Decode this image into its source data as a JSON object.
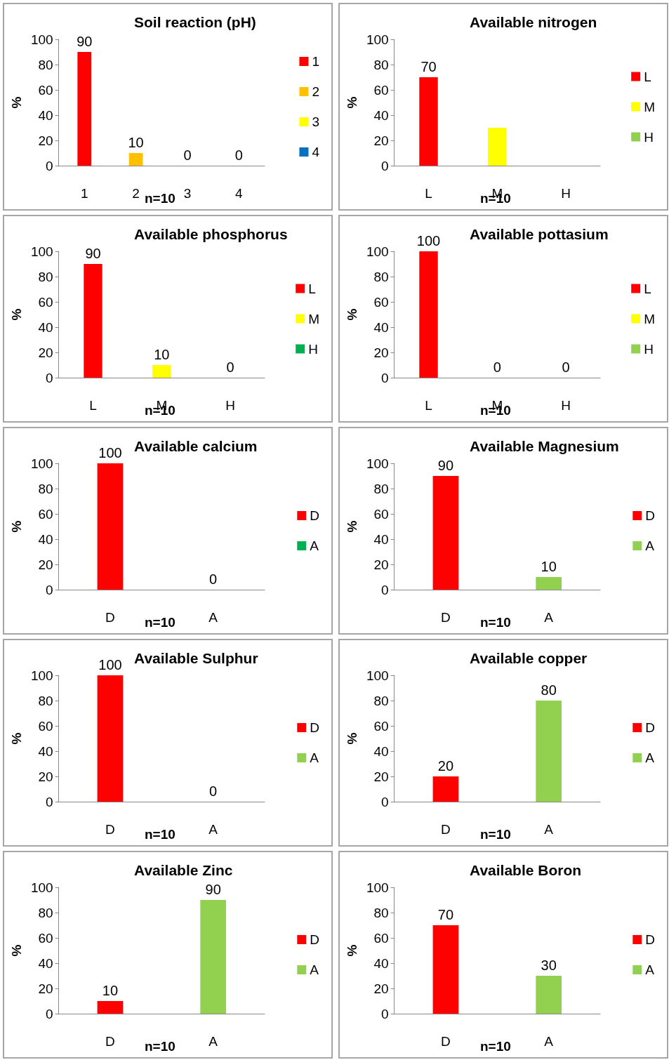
{
  "chart_data": [
    {
      "type": "bar",
      "title": "Soil reaction (pH)",
      "ylabel": "%",
      "categories": [
        "1",
        "2",
        "3",
        "4"
      ],
      "series": [
        {
          "name": "1",
          "color": "#ff0000",
          "values": [
            90,
            null,
            null,
            null
          ]
        },
        {
          "name": "2",
          "color": "#ffc000",
          "values": [
            null,
            10,
            null,
            null
          ]
        },
        {
          "name": "3",
          "color": "#ffff00",
          "values": [
            null,
            null,
            0,
            null
          ]
        },
        {
          "name": "4",
          "color": "#0070c0",
          "values": [
            null,
            null,
            null,
            0
          ]
        }
      ],
      "ylim": [
        0,
        100
      ],
      "yticks": [
        0,
        20,
        40,
        60,
        80,
        100
      ],
      "data_labels": true,
      "legend": "right",
      "annotations": [
        "n=10"
      ]
    },
    {
      "type": "bar",
      "title": "Available nitrogen",
      "ylabel": "%",
      "categories": [
        "L",
        "M",
        "H"
      ],
      "series": [
        {
          "name": "L",
          "color": "#ff0000",
          "values": [
            70,
            null,
            null
          ],
          "value_labels": [
            "70",
            null,
            null
          ]
        },
        {
          "name": "M",
          "color": "#ffff00",
          "values": [
            null,
            30,
            null
          ],
          "value_labels": [
            null,
            null,
            null
          ]
        },
        {
          "name": "H",
          "color": "#92d050",
          "values": [
            null,
            null,
            0
          ],
          "value_labels": [
            null,
            null,
            null
          ]
        }
      ],
      "ylim": [
        0,
        100
      ],
      "yticks": [
        0,
        20,
        40,
        60,
        80,
        100
      ],
      "legend": "right",
      "annotations": [
        "n=10"
      ]
    },
    {
      "type": "bar",
      "title": "Available phosphorus",
      "ylabel": "%",
      "categories": [
        "L",
        "M",
        "H"
      ],
      "series": [
        {
          "name": "L",
          "color": "#ff0000",
          "values": [
            90,
            null,
            null
          ]
        },
        {
          "name": "M",
          "color": "#ffff00",
          "values": [
            null,
            10,
            null
          ]
        },
        {
          "name": "H",
          "color": "#00b050",
          "values": [
            null,
            null,
            0
          ]
        }
      ],
      "ylim": [
        0,
        100
      ],
      "yticks": [
        0,
        20,
        40,
        60,
        80,
        100
      ],
      "data_labels": true,
      "legend": "right",
      "annotations": [
        "n=10"
      ]
    },
    {
      "type": "bar",
      "title": "Available pottasium",
      "ylabel": "%",
      "categories": [
        "L",
        "M",
        "H"
      ],
      "series": [
        {
          "name": "L",
          "color": "#ff0000",
          "values": [
            100,
            null,
            null
          ]
        },
        {
          "name": "M",
          "color": "#ffff00",
          "values": [
            null,
            0,
            null
          ]
        },
        {
          "name": "H",
          "color": "#92d050",
          "values": [
            null,
            null,
            0
          ]
        }
      ],
      "ylim": [
        0,
        100
      ],
      "yticks": [
        0,
        20,
        40,
        60,
        80,
        100
      ],
      "data_labels": true,
      "legend": "right",
      "annotations": [
        "n=10"
      ]
    },
    {
      "type": "bar",
      "title": "Available calcium",
      "ylabel": "%",
      "categories": [
        "D",
        "A"
      ],
      "series": [
        {
          "name": "D",
          "color": "#ff0000",
          "values": [
            100,
            null
          ]
        },
        {
          "name": "A",
          "color": "#00b050",
          "values": [
            null,
            0
          ]
        }
      ],
      "ylim": [
        0,
        100
      ],
      "yticks": [
        0,
        20,
        40,
        60,
        80,
        100
      ],
      "data_labels": true,
      "legend": "right",
      "annotations": [
        "n=10"
      ]
    },
    {
      "type": "bar",
      "title": "Available Magnesium",
      "ylabel": "%",
      "categories": [
        "D",
        "A"
      ],
      "series": [
        {
          "name": "D",
          "color": "#ff0000",
          "values": [
            90,
            null
          ]
        },
        {
          "name": "A",
          "color": "#92d050",
          "values": [
            null,
            10
          ]
        }
      ],
      "ylim": [
        0,
        100
      ],
      "yticks": [
        0,
        20,
        40,
        60,
        80,
        100
      ],
      "data_labels": true,
      "legend": "right",
      "annotations": [
        "n=10"
      ]
    },
    {
      "type": "bar",
      "title": "Available Sulphur",
      "ylabel": "%",
      "categories": [
        "D",
        "A"
      ],
      "series": [
        {
          "name": "D",
          "color": "#ff0000",
          "values": [
            100,
            null
          ]
        },
        {
          "name": "A",
          "color": "#92d050",
          "values": [
            null,
            0
          ]
        }
      ],
      "ylim": [
        0,
        100
      ],
      "yticks": [
        0,
        20,
        40,
        60,
        80,
        100
      ],
      "data_labels": true,
      "legend": "right",
      "annotations": [
        "n=10"
      ]
    },
    {
      "type": "bar",
      "title": "Available copper",
      "ylabel": "%",
      "categories": [
        "D",
        "A"
      ],
      "series": [
        {
          "name": "D",
          "color": "#ff0000",
          "values": [
            20,
            null
          ]
        },
        {
          "name": "A",
          "color": "#92d050",
          "values": [
            null,
            80
          ]
        }
      ],
      "ylim": [
        0,
        100
      ],
      "yticks": [
        0,
        20,
        40,
        60,
        80,
        100
      ],
      "data_labels": true,
      "legend": "right",
      "annotations": [
        "n=10"
      ]
    },
    {
      "type": "bar",
      "title": "Available Zinc",
      "ylabel": "%",
      "categories": [
        "D",
        "A"
      ],
      "series": [
        {
          "name": "D",
          "color": "#ff0000",
          "values": [
            10,
            null
          ]
        },
        {
          "name": "A",
          "color": "#92d050",
          "values": [
            null,
            90
          ]
        }
      ],
      "ylim": [
        0,
        100
      ],
      "yticks": [
        0,
        20,
        40,
        60,
        80,
        100
      ],
      "data_labels": true,
      "legend": "right",
      "annotations": [
        "n=10"
      ]
    },
    {
      "type": "bar",
      "title": "Available Boron",
      "ylabel": "%",
      "categories": [
        "D",
        "A"
      ],
      "series": [
        {
          "name": "D",
          "color": "#ff0000",
          "values": [
            70,
            null
          ]
        },
        {
          "name": "A",
          "color": "#92d050",
          "values": [
            null,
            30
          ]
        }
      ],
      "ylim": [
        0,
        100
      ],
      "yticks": [
        0,
        20,
        40,
        60,
        80,
        100
      ],
      "data_labels": true,
      "legend": "right",
      "annotations": [
        "n=10"
      ]
    }
  ]
}
